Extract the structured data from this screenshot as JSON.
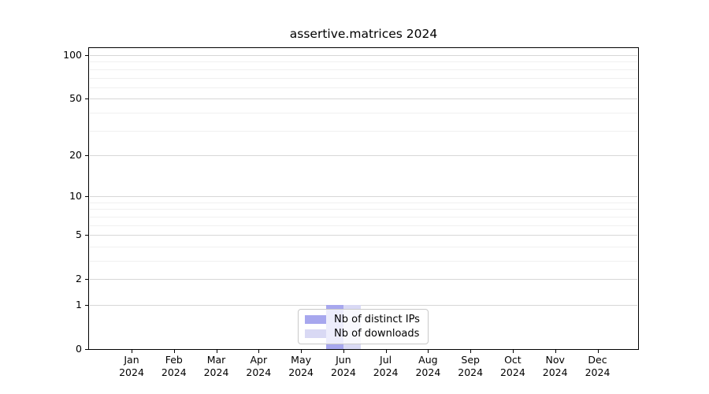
{
  "title": "assertive.matrices 2024",
  "chart_data": {
    "type": "bar",
    "title": "assertive.matrices 2024",
    "x_months": [
      "Jan",
      "Feb",
      "Mar",
      "Apr",
      "May",
      "Jun",
      "Jul",
      "Aug",
      "Sep",
      "Oct",
      "Nov",
      "Dec"
    ],
    "x_year": "2024",
    "series": [
      {
        "name": "Nb of distinct IPs",
        "color": "#a7a7ee",
        "values": [
          0,
          0,
          0,
          0,
          0,
          1,
          0,
          0,
          0,
          0,
          0,
          0
        ]
      },
      {
        "name": "Nb of downloads",
        "color": "#d9d9f4",
        "values": [
          0,
          0,
          0,
          0,
          0,
          1,
          0,
          0,
          0,
          0,
          0,
          0
        ]
      }
    ],
    "yscale": "log1p",
    "ylim": [
      0,
      100
    ],
    "y_major_ticks": [
      0,
      1,
      2,
      5,
      10,
      20,
      50,
      100
    ],
    "y_minor_ticks": [
      3,
      4,
      6,
      7,
      8,
      9,
      30,
      40,
      60,
      70,
      80,
      90
    ],
    "grid": "horizontal-major-and-minor",
    "legend_position": "bottom-center-inside"
  },
  "colors": {
    "bar_distinct_ips": "#a7a7ee",
    "bar_downloads": "#d9d9f4",
    "grid_major": "#d7d7d7",
    "grid_minor": "#f0f0f0",
    "axis": "#000000",
    "legend_border": "#c9c9c9",
    "background": "#ffffff"
  }
}
